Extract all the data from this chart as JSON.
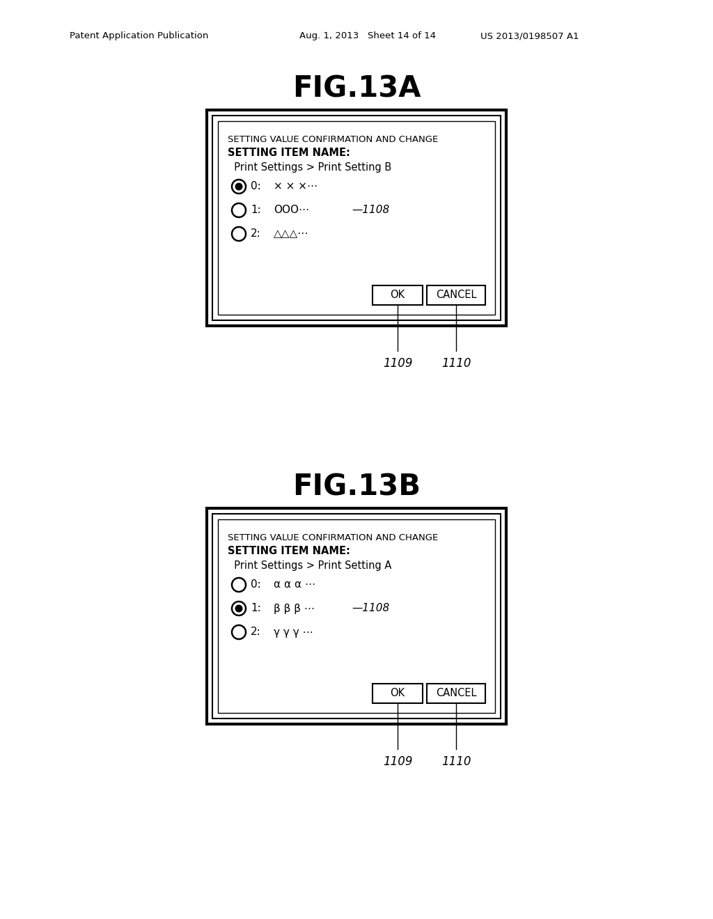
{
  "bg_color": "#ffffff",
  "header_left": "Patent Application Publication",
  "header_mid": "Aug. 1, 2013   Sheet 14 of 14",
  "header_right": "US 2013/0198507 A1",
  "fig13a_title": "FIG.13A",
  "fig13b_title": "FIG.13B",
  "fig13a": {
    "dialog_title": "SETTING VALUE CONFIRMATION AND CHANGE",
    "setting_label": "SETTING ITEM NAME:",
    "setting_value": "  Print Settings > Print Setting B",
    "options": [
      {
        "selected": true,
        "index": "0:",
        "label": "× × ×⋯"
      },
      {
        "selected": false,
        "index": "1:",
        "label": "OOO⋯"
      },
      {
        "selected": false,
        "index": "2:",
        "label": "△△△⋯"
      }
    ],
    "brace_label": "1108",
    "ok_label": "OK",
    "cancel_label": "CANCEL",
    "label_1109": "1109",
    "label_1110": "1110"
  },
  "fig13b": {
    "dialog_title": "SETTING VALUE CONFIRMATION AND CHANGE",
    "setting_label": "SETTING ITEM NAME:",
    "setting_value": "  Print Settings > Print Setting A",
    "options": [
      {
        "selected": false,
        "index": "0:",
        "label": "α α α ⋯"
      },
      {
        "selected": true,
        "index": "1:",
        "label": "β β β ⋯"
      },
      {
        "selected": false,
        "index": "2:",
        "label": "γ γ γ ⋯"
      }
    ],
    "brace_label": "1108",
    "ok_label": "OK",
    "cancel_label": "CANCEL",
    "label_1109": "1109",
    "label_1110": "1110"
  }
}
